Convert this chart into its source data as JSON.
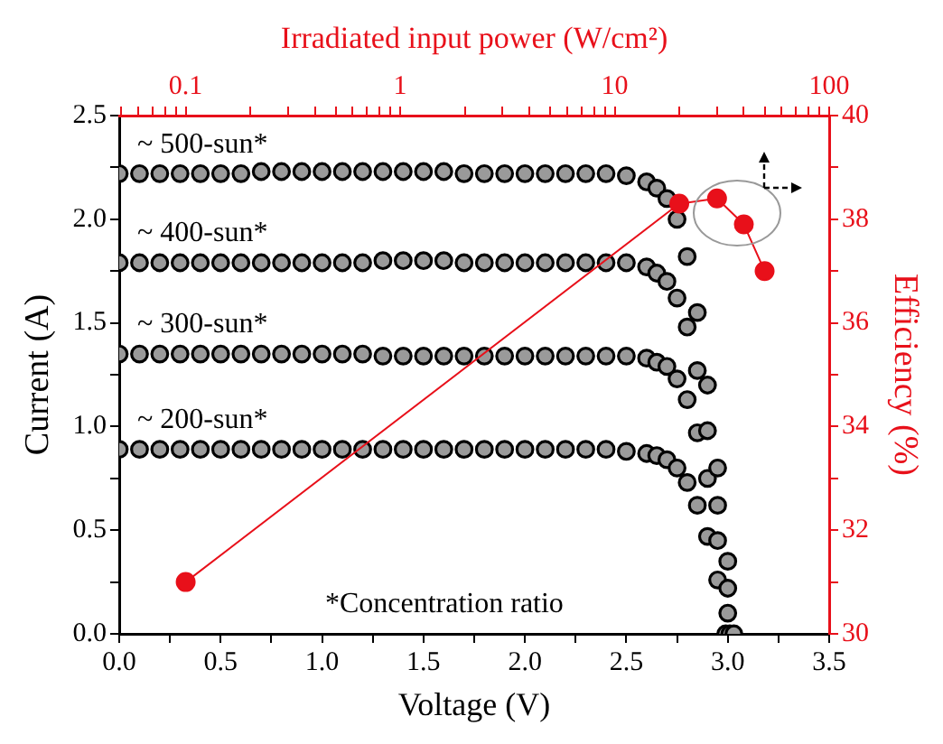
{
  "chart_data": [
    {
      "type": "scatter",
      "xlabel": "Voltage (V)",
      "ylabel": "Current (A)",
      "xlim": [
        0,
        3.5
      ],
      "xticks": [
        {
          "value": 0,
          "label": "0.0"
        },
        {
          "value": 0.25,
          "label": null
        },
        {
          "value": 0.5,
          "label": "0.5"
        },
        {
          "value": 0.75,
          "label": null
        },
        {
          "value": 1,
          "label": "1.0"
        },
        {
          "value": 1.25,
          "label": null
        },
        {
          "value": 1.5,
          "label": "1.5"
        },
        {
          "value": 1.75,
          "label": null
        },
        {
          "value": 2,
          "label": "2.0"
        },
        {
          "value": 2.25,
          "label": null
        },
        {
          "value": 2.5,
          "label": "2.5"
        },
        {
          "value": 2.75,
          "label": null
        },
        {
          "value": 3,
          "label": "3.0"
        },
        {
          "value": 3.25,
          "label": null
        },
        {
          "value": 3.5,
          "label": "3.5"
        }
      ],
      "ylim": [
        0,
        2.5
      ],
      "yticks": [
        {
          "value": 0,
          "label": "0.0"
        },
        {
          "value": 0.25,
          "label": null
        },
        {
          "value": 0.5,
          "label": "0.5"
        },
        {
          "value": 0.75,
          "label": null
        },
        {
          "value": 1,
          "label": "1.0"
        },
        {
          "value": 1.25,
          "label": null
        },
        {
          "value": 1.5,
          "label": "1.5"
        },
        {
          "value": 1.75,
          "label": null
        },
        {
          "value": 2,
          "label": "2.0"
        },
        {
          "value": 2.25,
          "label": null
        },
        {
          "value": 2.5,
          "label": "2.5"
        }
      ],
      "grid": false,
      "legend": false,
      "marker": "circle",
      "annotations": [
        "*Concentration ratio"
      ],
      "series": [
        {
          "name": "~ 500-sun*",
          "color": "#000000",
          "x": [
            0,
            0.1,
            0.2,
            0.3,
            0.4,
            0.5,
            0.6,
            0.7,
            0.8,
            0.9,
            1,
            1.1,
            1.2,
            1.3,
            1.4,
            1.5,
            1.6,
            1.7,
            1.8,
            1.9,
            2,
            2.1,
            2.2,
            2.3,
            2.4,
            2.5,
            2.6,
            2.65,
            2.7,
            2.75,
            2.8,
            2.85,
            2.9,
            2.95,
            3,
            3.03
          ],
          "values": [
            2.22,
            2.22,
            2.22,
            2.22,
            2.22,
            2.22,
            2.22,
            2.23,
            2.23,
            2.23,
            2.23,
            2.23,
            2.23,
            2.23,
            2.23,
            2.23,
            2.23,
            2.22,
            2.22,
            2.22,
            2.22,
            2.22,
            2.22,
            2.22,
            2.22,
            2.21,
            2.18,
            2.15,
            2.1,
            2.0,
            1.82,
            1.55,
            1.2,
            0.8,
            0.35,
            0
          ]
        },
        {
          "name": "~ 400-sun*",
          "color": "#000000",
          "x": [
            0,
            0.1,
            0.2,
            0.3,
            0.4,
            0.5,
            0.6,
            0.7,
            0.8,
            0.9,
            1,
            1.1,
            1.2,
            1.3,
            1.4,
            1.5,
            1.6,
            1.7,
            1.8,
            1.9,
            2,
            2.1,
            2.2,
            2.3,
            2.4,
            2.5,
            2.6,
            2.65,
            2.7,
            2.75,
            2.8,
            2.85,
            2.9,
            2.95,
            3
          ],
          "values": [
            1.79,
            1.79,
            1.79,
            1.79,
            1.79,
            1.79,
            1.79,
            1.79,
            1.79,
            1.79,
            1.79,
            1.79,
            1.79,
            1.8,
            1.8,
            1.8,
            1.8,
            1.79,
            1.79,
            1.79,
            1.79,
            1.79,
            1.79,
            1.79,
            1.79,
            1.79,
            1.77,
            1.74,
            1.7,
            1.62,
            1.48,
            1.27,
            0.98,
            0.62,
            0.22
          ]
        },
        {
          "name": "~ 300-sun*",
          "color": "#000000",
          "x": [
            0,
            0.1,
            0.2,
            0.3,
            0.4,
            0.5,
            0.6,
            0.7,
            0.8,
            0.9,
            1,
            1.1,
            1.2,
            1.3,
            1.4,
            1.5,
            1.6,
            1.7,
            1.8,
            1.9,
            2,
            2.1,
            2.2,
            2.3,
            2.4,
            2.5,
            2.6,
            2.65,
            2.7,
            2.75,
            2.8,
            2.85,
            2.9,
            2.95,
            3,
            3.01
          ],
          "values": [
            1.35,
            1.35,
            1.35,
            1.35,
            1.35,
            1.35,
            1.35,
            1.35,
            1.35,
            1.35,
            1.35,
            1.35,
            1.35,
            1.34,
            1.34,
            1.34,
            1.34,
            1.34,
            1.34,
            1.34,
            1.34,
            1.34,
            1.34,
            1.34,
            1.34,
            1.34,
            1.33,
            1.31,
            1.29,
            1.23,
            1.13,
            0.97,
            0.75,
            0.45,
            0.1,
            0
          ]
        },
        {
          "name": "~ 200-sun*",
          "color": "#000000",
          "x": [
            0,
            0.1,
            0.2,
            0.3,
            0.4,
            0.5,
            0.6,
            0.7,
            0.8,
            0.9,
            1,
            1.1,
            1.2,
            1.3,
            1.4,
            1.5,
            1.6,
            1.7,
            1.8,
            1.9,
            2,
            2.1,
            2.2,
            2.3,
            2.4,
            2.5,
            2.6,
            2.65,
            2.7,
            2.75,
            2.8,
            2.85,
            2.9,
            2.95,
            2.99
          ],
          "values": [
            0.89,
            0.89,
            0.89,
            0.89,
            0.89,
            0.89,
            0.89,
            0.89,
            0.89,
            0.89,
            0.89,
            0.89,
            0.89,
            0.89,
            0.89,
            0.89,
            0.89,
            0.89,
            0.89,
            0.89,
            0.89,
            0.89,
            0.89,
            0.89,
            0.89,
            0.88,
            0.87,
            0.86,
            0.84,
            0.8,
            0.73,
            0.62,
            0.47,
            0.26,
            0
          ]
        }
      ]
    },
    {
      "type": "line",
      "xlabel": "Irradiated input power (W/cm²)",
      "ylabel": "Efficiency (%)",
      "xlim": [
        0.049,
        100
      ],
      "xticks": [
        {
          "value": 0.05,
          "label": null
        },
        {
          "value": 0.06,
          "label": null
        },
        {
          "value": 0.07,
          "label": null
        },
        {
          "value": 0.08,
          "label": null
        },
        {
          "value": 0.09,
          "label": null
        },
        0.1,
        {
          "value": 0.2,
          "label": null
        },
        {
          "value": 0.3,
          "label": null
        },
        {
          "value": 0.4,
          "label": null
        },
        {
          "value": 0.5,
          "label": null
        },
        {
          "value": 0.6,
          "label": null
        },
        {
          "value": 0.7,
          "label": null
        },
        {
          "value": 0.8,
          "label": null
        },
        {
          "value": 0.9,
          "label": null
        },
        1,
        {
          "value": 2,
          "label": null
        },
        {
          "value": 3,
          "label": null
        },
        {
          "value": 4,
          "label": null
        },
        {
          "value": 5,
          "label": null
        },
        {
          "value": 6,
          "label": null
        },
        {
          "value": 7,
          "label": null
        },
        {
          "value": 8,
          "label": null
        },
        {
          "value": 9,
          "label": null
        },
        10,
        {
          "value": 20,
          "label": null
        },
        {
          "value": 30,
          "label": null
        },
        {
          "value": 40,
          "label": null
        },
        {
          "value": 50,
          "label": null
        },
        {
          "value": 60,
          "label": null
        },
        {
          "value": 70,
          "label": null
        },
        {
          "value": 80,
          "label": null
        },
        {
          "value": 90,
          "label": null
        },
        100
      ],
      "ylim": [
        30,
        40
      ],
      "yticks": [
        30,
        {
          "value": 31,
          "label": null
        },
        32,
        {
          "value": 33,
          "label": null
        },
        34,
        {
          "value": 35,
          "label": null
        },
        36,
        {
          "value": 37,
          "label": null
        },
        38,
        {
          "value": 39,
          "label": null
        },
        40
      ],
      "log": "x",
      "grid": false,
      "legend": false,
      "marker": "circle",
      "line_style": "solid",
      "series": [
        {
          "color": "#e8101a",
          "x": [
            0.1,
            20,
            30,
            40,
            50
          ],
          "values": [
            31.0,
            38.3,
            38.4,
            37.9,
            37.0
          ]
        }
      ]
    }
  ]
}
